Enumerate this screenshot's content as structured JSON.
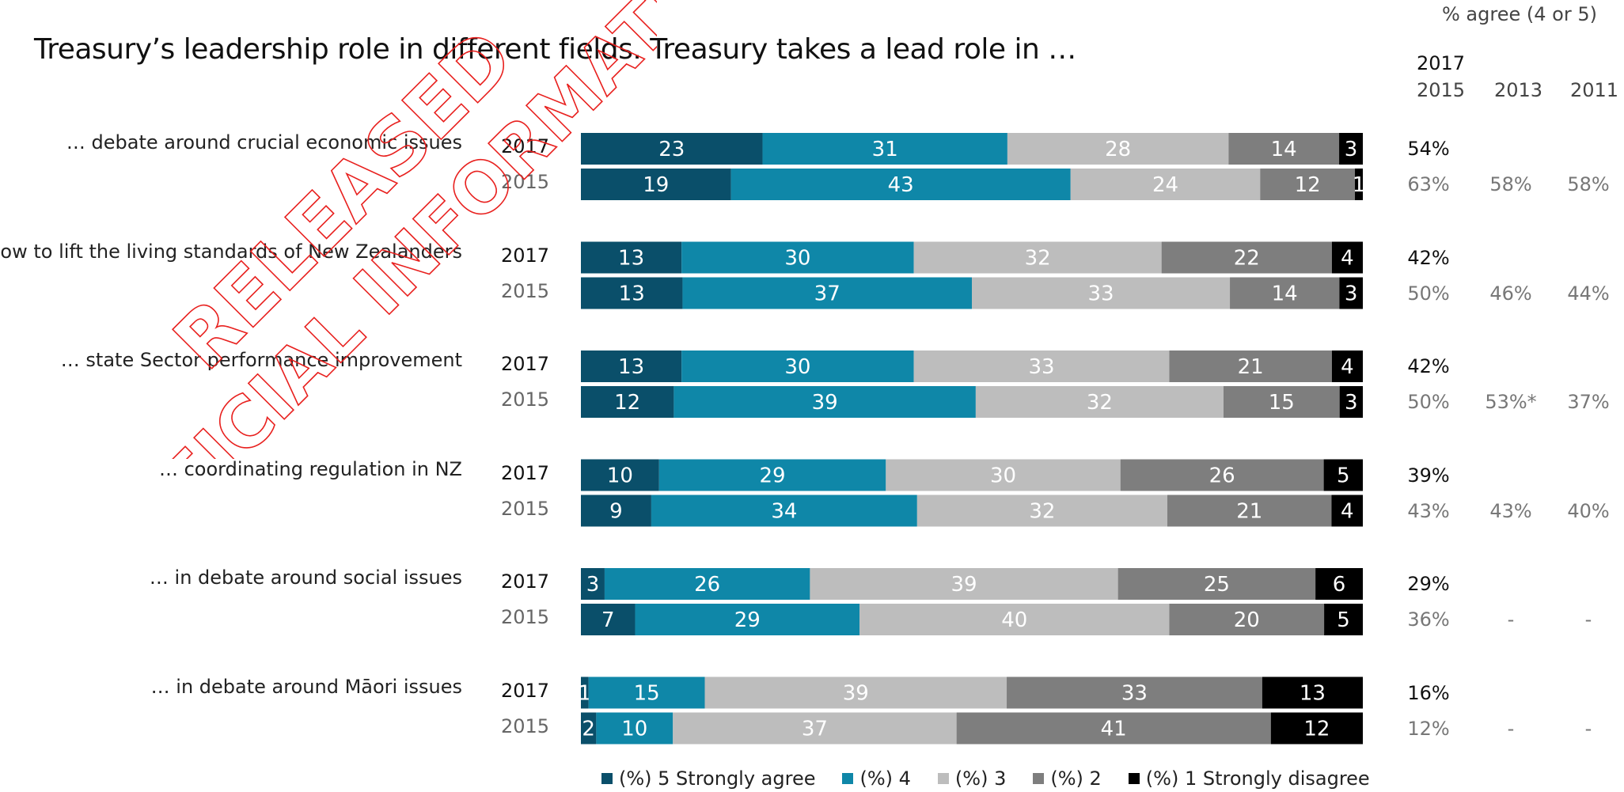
{
  "title": "Treasury’s leadership role in different fields. Treasury takes a lead role in …",
  "agree_header": "% agree (4 or 5)",
  "agree_columns": {
    "current_year": "2017",
    "years": [
      "2015",
      "2013",
      "2011"
    ]
  },
  "watermark": {
    "line1": "RELEASED",
    "line2": "OFFICIAL INFORMATION"
  },
  "colors": {
    "s5": "#0a4f6a",
    "s4": "#0f87a8",
    "s3": "#bdbdbd",
    "s2": "#7e7e7e",
    "s1": "#000000"
  },
  "chart_data": {
    "type": "bar",
    "orientation": "horizontal",
    "stacked": true,
    "series_names": [
      "(%) 5 Strongly agree",
      "(%) 4",
      "(%) 3",
      "(%) 2",
      "(%) 1 Strongly disagree"
    ],
    "categories": [
      {
        "label": "… debate around crucial economic issues",
        "rows": [
          {
            "year": "2017",
            "values": [
              23,
              31,
              28,
              14,
              3
            ]
          },
          {
            "year": "2015",
            "values": [
              19,
              43,
              24,
              12,
              1
            ]
          }
        ],
        "agree": {
          "2017": "54%",
          "2015": "63%",
          "2013": "58%",
          "2011": "58%"
        }
      },
      {
        "label": "… how to lift the living standards of New Zealanders",
        "rows": [
          {
            "year": "2017",
            "values": [
              13,
              30,
              32,
              22,
              4
            ]
          },
          {
            "year": "2015",
            "values": [
              13,
              37,
              33,
              14,
              3
            ]
          }
        ],
        "agree": {
          "2017": "42%",
          "2015": "50%",
          "2013": "46%",
          "2011": "44%"
        }
      },
      {
        "label": "… state Sector performance improvement",
        "rows": [
          {
            "year": "2017",
            "values": [
              13,
              30,
              33,
              21,
              4
            ]
          },
          {
            "year": "2015",
            "values": [
              12,
              39,
              32,
              15,
              3
            ]
          }
        ],
        "agree": {
          "2017": "42%",
          "2015": "50%",
          "2013": "53%*",
          "2011": "37%"
        }
      },
      {
        "label": "… coordinating regulation in NZ",
        "rows": [
          {
            "year": "2017",
            "values": [
              10,
              29,
              30,
              26,
              5
            ]
          },
          {
            "year": "2015",
            "values": [
              9,
              34,
              32,
              21,
              4
            ]
          }
        ],
        "agree": {
          "2017": "39%",
          "2015": "43%",
          "2013": "43%",
          "2011": "40%"
        }
      },
      {
        "label": "… in debate around social issues",
        "rows": [
          {
            "year": "2017",
            "values": [
              3,
              26,
              39,
              25,
              6
            ]
          },
          {
            "year": "2015",
            "values": [
              7,
              29,
              40,
              20,
              5
            ]
          }
        ],
        "agree": {
          "2017": "29%",
          "2015": "36%",
          "2013": "-",
          "2011": "-"
        }
      },
      {
        "label": "… in debate around Māori  issues",
        "rows": [
          {
            "year": "2017",
            "values": [
              1,
              15,
              39,
              33,
              13
            ]
          },
          {
            "year": "2015",
            "values": [
              2,
              10,
              37,
              41,
              12
            ]
          }
        ],
        "agree": {
          "2017": "16%",
          "2015": "12%",
          "2013": "-",
          "2011": "-"
        }
      }
    ]
  }
}
